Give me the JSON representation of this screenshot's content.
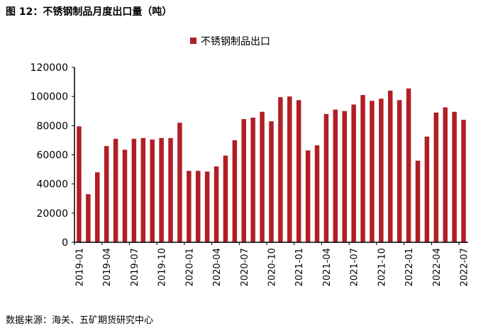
{
  "title": "图 12：不锈钢制品月度出口量（吨）",
  "source": "数据来源：海关、五矿期货研究中心",
  "chart_data": {
    "type": "bar",
    "title": "",
    "legend": {
      "entries": [
        "不锈钢制品出口"
      ],
      "placement": "top"
    },
    "color": "#B01F24",
    "ylim": [
      0,
      120000
    ],
    "yticks": [
      0,
      20000,
      40000,
      60000,
      80000,
      100000,
      120000
    ],
    "categories": [
      "2019-01",
      "2019-02",
      "2019-03",
      "2019-04",
      "2019-05",
      "2019-06",
      "2019-07",
      "2019-08",
      "2019-09",
      "2019-10",
      "2019-11",
      "2019-12",
      "2020-01",
      "2020-02",
      "2020-03",
      "2020-04",
      "2020-05",
      "2020-06",
      "2020-07",
      "2020-08",
      "2020-09",
      "2020-10",
      "2020-11",
      "2020-12",
      "2021-01",
      "2021-02",
      "2021-03",
      "2021-04",
      "2021-05",
      "2021-06",
      "2021-07",
      "2021-08",
      "2021-09",
      "2021-10",
      "2021-11",
      "2021-12",
      "2022-01",
      "2022-02",
      "2022-03",
      "2022-04",
      "2022-05",
      "2022-06",
      "2022-07"
    ],
    "xtick_labels": [
      "2019-01",
      "2019-04",
      "2019-07",
      "2019-10",
      "2020-01",
      "2020-04",
      "2020-07",
      "2020-10",
      "2021-01",
      "2021-04",
      "2021-07",
      "2021-10",
      "2022-01",
      "2022-04",
      "2022-07"
    ],
    "series": [
      {
        "name": "不锈钢制品出口",
        "values": [
          79500,
          33000,
          48000,
          66000,
          71000,
          63500,
          71000,
          71500,
          70500,
          71500,
          71500,
          82000,
          49000,
          49000,
          48500,
          52000,
          59500,
          70000,
          84500,
          85500,
          89500,
          83000,
          99500,
          100000,
          97500,
          63000,
          66500,
          88000,
          91000,
          90000,
          94500,
          101000,
          97000,
          98500,
          104000,
          97500,
          105500,
          56000,
          72500,
          89000,
          92500,
          89500,
          84000
        ]
      }
    ]
  }
}
